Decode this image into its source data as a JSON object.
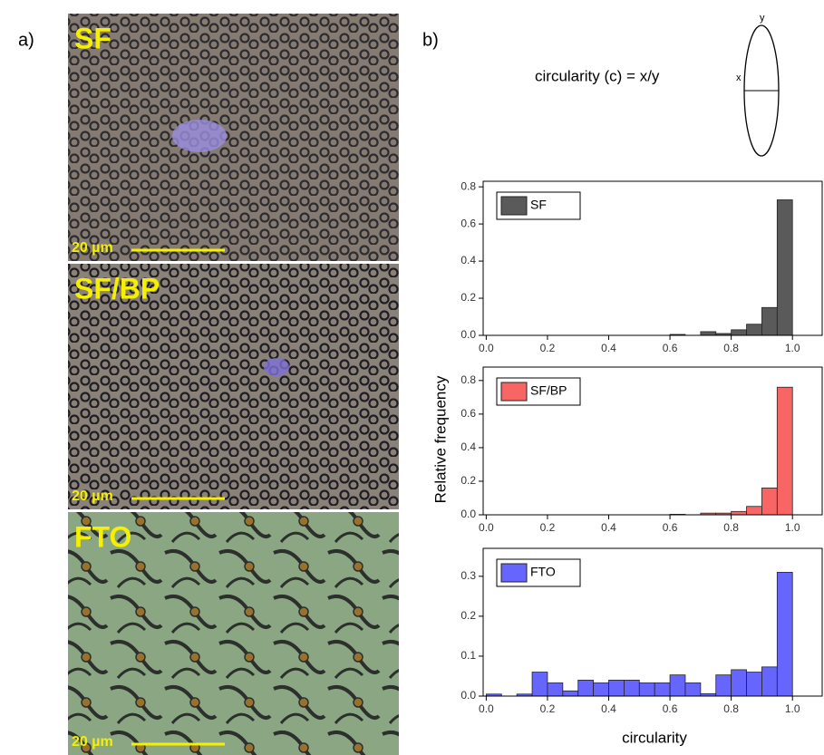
{
  "panel_labels": [
    "a)",
    "b)"
  ],
  "micrographs": [
    {
      "label": "SF",
      "scale_bar": "20 µm"
    },
    {
      "label": "SF/BP",
      "scale_bar": "20 µm"
    },
    {
      "label": "FTO",
      "scale_bar": "20 µm"
    }
  ],
  "formula": "circularity (c) = x/y",
  "ellipse_axes": [
    "x",
    "y"
  ],
  "y_label": "Relative frequency",
  "x_label": "circularity",
  "chart_data": [
    {
      "type": "histogram",
      "legend": "SF",
      "color": "#5a5a5a",
      "bins": [
        0,
        0.05,
        0.1,
        0.15,
        0.2,
        0.25,
        0.3,
        0.35,
        0.4,
        0.45,
        0.5,
        0.55,
        0.6,
        0.65,
        0.7,
        0.75,
        0.8,
        0.85,
        0.9,
        0.95,
        1.0
      ],
      "values": [
        0,
        0,
        0,
        0,
        0,
        0,
        0,
        0,
        0,
        0,
        0,
        0,
        0.005,
        0,
        0.02,
        0.01,
        0.03,
        0.06,
        0.15,
        0.73
      ],
      "xlim": [
        -0.01,
        1.1
      ],
      "ylim": [
        0,
        0.83
      ],
      "xticks": [
        {
          "value": 0,
          "label": "0.0"
        },
        0.2,
        0.4,
        0.6,
        0.8,
        {
          "value": 1,
          "label": "1.0"
        }
      ],
      "yticks": [
        {
          "value": 0,
          "label": "0.0"
        },
        0.2,
        0.4,
        0.6,
        0.8
      ]
    },
    {
      "type": "histogram",
      "legend": "SF/BP",
      "color": "#f86565",
      "bins": [
        0,
        0.05,
        0.1,
        0.15,
        0.2,
        0.25,
        0.3,
        0.35,
        0.4,
        0.45,
        0.5,
        0.55,
        0.6,
        0.65,
        0.7,
        0.75,
        0.8,
        0.85,
        0.9,
        0.95,
        1.0
      ],
      "values": [
        0,
        0,
        0,
        0,
        0,
        0,
        0,
        0,
        0,
        0,
        0,
        0,
        0.003,
        0,
        0.01,
        0.01,
        0.02,
        0.05,
        0.16,
        0.76
      ],
      "xlim": [
        -0.01,
        1.1
      ],
      "ylim": [
        0,
        0.88
      ],
      "xticks": [
        {
          "value": 0,
          "label": "0.0"
        },
        0.2,
        0.4,
        0.6,
        0.8,
        {
          "value": 1,
          "label": "1.0"
        }
      ],
      "yticks": [
        {
          "value": 0,
          "label": "0.0"
        },
        0.2,
        0.4,
        0.6,
        0.8
      ]
    },
    {
      "type": "histogram",
      "legend": "FTO",
      "color": "#6666ff",
      "bins": [
        0,
        0.05,
        0.1,
        0.15,
        0.2,
        0.25,
        0.3,
        0.35,
        0.4,
        0.45,
        0.5,
        0.55,
        0.6,
        0.65,
        0.7,
        0.75,
        0.8,
        0.85,
        0.9,
        0.95,
        1.0
      ],
      "values": [
        0.005,
        0,
        0.005,
        0.06,
        0.033,
        0.013,
        0.04,
        0.033,
        0.04,
        0.04,
        0.033,
        0.033,
        0.053,
        0.033,
        0.006,
        0.053,
        0.066,
        0.06,
        0.073,
        0.31
      ],
      "xlim": [
        -0.01,
        1.1
      ],
      "ylim": [
        0,
        0.37
      ],
      "xticks": [
        {
          "value": 0,
          "label": "0.0"
        },
        0.2,
        0.4,
        0.6,
        0.8,
        {
          "value": 1,
          "label": "1.0"
        }
      ],
      "yticks": [
        {
          "value": 0,
          "label": "0.0"
        },
        0.1,
        0.2,
        0.3
      ]
    }
  ]
}
